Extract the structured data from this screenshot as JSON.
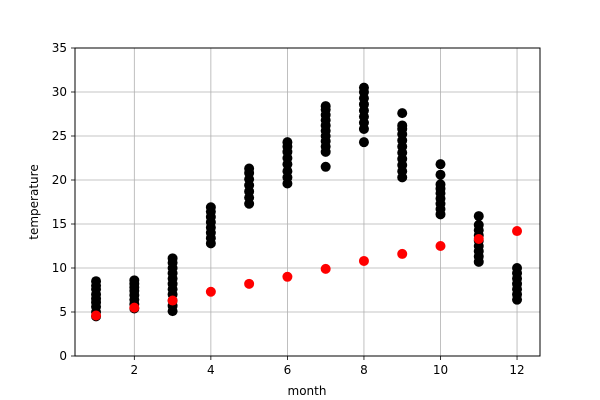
{
  "chart_data": {
    "type": "scatter",
    "title": "",
    "xlabel": "month",
    "ylabel": "temperature",
    "xlim": [
      0.45,
      12.6
    ],
    "ylim": [
      0,
      35
    ],
    "xticks": [
      2,
      4,
      6,
      8,
      10,
      12
    ],
    "yticks": [
      0,
      5,
      10,
      15,
      20,
      25,
      30,
      35
    ],
    "grid": true,
    "legend": "none",
    "series": [
      {
        "color": "#000000",
        "points": [
          [
            1,
            4.5
          ],
          [
            1,
            5.0
          ],
          [
            1,
            5.6
          ],
          [
            1,
            6.1
          ],
          [
            1,
            6.5
          ],
          [
            1,
            7.0
          ],
          [
            1,
            7.6
          ],
          [
            1,
            8.0
          ],
          [
            1,
            8.5
          ],
          [
            2,
            5.4
          ],
          [
            2,
            5.9
          ],
          [
            2,
            6.4
          ],
          [
            2,
            6.9
          ],
          [
            2,
            7.4
          ],
          [
            2,
            7.8
          ],
          [
            2,
            8.2
          ],
          [
            2,
            8.6
          ],
          [
            3,
            5.1
          ],
          [
            3,
            5.7
          ],
          [
            3,
            6.3
          ],
          [
            3,
            7.0
          ],
          [
            3,
            7.6
          ],
          [
            3,
            8.2
          ],
          [
            3,
            8.8
          ],
          [
            3,
            9.4
          ],
          [
            3,
            10.0
          ],
          [
            3,
            10.6
          ],
          [
            3,
            11.1
          ],
          [
            4,
            12.8
          ],
          [
            4,
            13.4
          ],
          [
            4,
            14.0
          ],
          [
            4,
            14.6
          ],
          [
            4,
            15.2
          ],
          [
            4,
            15.8
          ],
          [
            4,
            16.4
          ],
          [
            4,
            16.9
          ],
          [
            5,
            17.3
          ],
          [
            5,
            18.0
          ],
          [
            5,
            18.7
          ],
          [
            5,
            19.4
          ],
          [
            5,
            20.1
          ],
          [
            5,
            20.8
          ],
          [
            5,
            21.3
          ],
          [
            6,
            19.6
          ],
          [
            6,
            20.3
          ],
          [
            6,
            21.0
          ],
          [
            6,
            21.8
          ],
          [
            6,
            22.5
          ],
          [
            6,
            23.2
          ],
          [
            6,
            23.8
          ],
          [
            6,
            24.3
          ],
          [
            7,
            21.5
          ],
          [
            7,
            23.2
          ],
          [
            7,
            23.8
          ],
          [
            7,
            24.4
          ],
          [
            7,
            25.0
          ],
          [
            7,
            25.6
          ],
          [
            7,
            26.2
          ],
          [
            7,
            26.8
          ],
          [
            7,
            27.4
          ],
          [
            7,
            28.0
          ],
          [
            7,
            28.4
          ],
          [
            8,
            24.3
          ],
          [
            8,
            25.8
          ],
          [
            8,
            26.5
          ],
          [
            8,
            27.2
          ],
          [
            8,
            27.9
          ],
          [
            8,
            28.6
          ],
          [
            8,
            29.3
          ],
          [
            8,
            30.0
          ],
          [
            8,
            30.5
          ],
          [
            9,
            20.3
          ],
          [
            9,
            21.0
          ],
          [
            9,
            21.7
          ],
          [
            9,
            22.4
          ],
          [
            9,
            23.1
          ],
          [
            9,
            23.8
          ],
          [
            9,
            24.5
          ],
          [
            9,
            25.2
          ],
          [
            9,
            25.8
          ],
          [
            9,
            26.2
          ],
          [
            9,
            27.6
          ],
          [
            10,
            16.1
          ],
          [
            10,
            16.7
          ],
          [
            10,
            17.3
          ],
          [
            10,
            17.9
          ],
          [
            10,
            18.5
          ],
          [
            10,
            19.0
          ],
          [
            10,
            19.5
          ],
          [
            10,
            20.6
          ],
          [
            10,
            21.8
          ],
          [
            11,
            10.7
          ],
          [
            11,
            11.3
          ],
          [
            11,
            11.9
          ],
          [
            11,
            12.5
          ],
          [
            11,
            13.1
          ],
          [
            11,
            13.7
          ],
          [
            11,
            14.3
          ],
          [
            11,
            14.9
          ],
          [
            11,
            15.9
          ],
          [
            12,
            6.4
          ],
          [
            12,
            7.0
          ],
          [
            12,
            7.6
          ],
          [
            12,
            8.2
          ],
          [
            12,
            8.8
          ],
          [
            12,
            9.4
          ],
          [
            12,
            10.0
          ]
        ]
      },
      {
        "color": "#ff0000",
        "points": [
          [
            1,
            4.6
          ],
          [
            2,
            5.5
          ],
          [
            3,
            6.3
          ],
          [
            4,
            7.3
          ],
          [
            5,
            8.2
          ],
          [
            6,
            9.0
          ],
          [
            7,
            9.9
          ],
          [
            8,
            10.8
          ],
          [
            9,
            11.6
          ],
          [
            10,
            12.5
          ],
          [
            11,
            13.3
          ],
          [
            12,
            14.2
          ]
        ]
      }
    ]
  }
}
